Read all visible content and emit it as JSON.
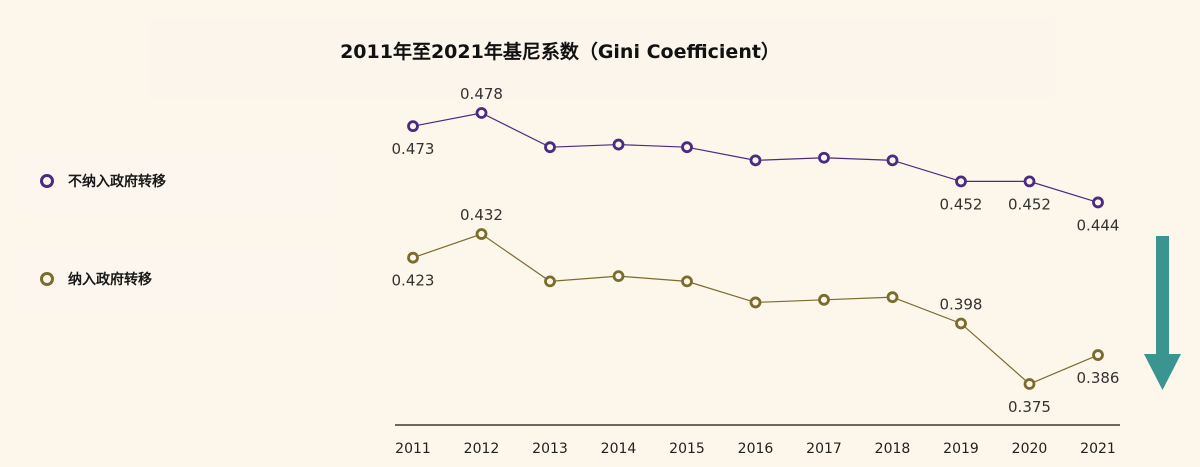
{
  "chart_data": {
    "type": "line",
    "title": "2011年至2021年基尼系数（Gini Coefficient）",
    "xlabel": "",
    "ylabel": "",
    "categories": [
      "2011",
      "2012",
      "2013",
      "2014",
      "2015",
      "2016",
      "2017",
      "2018",
      "2019",
      "2020",
      "2021"
    ],
    "series": [
      {
        "name": "不纳入政府转移",
        "color": "#4b2a82",
        "values": [
          0.473,
          0.478,
          0.465,
          0.466,
          0.465,
          0.46,
          0.461,
          0.46,
          0.452,
          0.452,
          0.444
        ],
        "labels": [
          "0.473",
          "0.478",
          "",
          "",
          "",
          "",
          "",
          "",
          "0.452",
          "0.452",
          "0.444"
        ]
      },
      {
        "name": "纳入政府转移",
        "color": "#7a6b2e",
        "values": [
          0.423,
          0.432,
          0.414,
          0.416,
          0.414,
          0.406,
          0.407,
          0.408,
          0.398,
          0.375,
          0.386
        ],
        "labels": [
          "0.423",
          "0.432",
          "",
          "",
          "",
          "",
          "",
          "",
          "0.398",
          "0.375",
          "0.386"
        ]
      }
    ],
    "ylim": [
      0.365,
      0.495
    ],
    "grid": false,
    "legend": "left",
    "annotation": "downward-arrow",
    "arrow_color": "#3a9490"
  }
}
